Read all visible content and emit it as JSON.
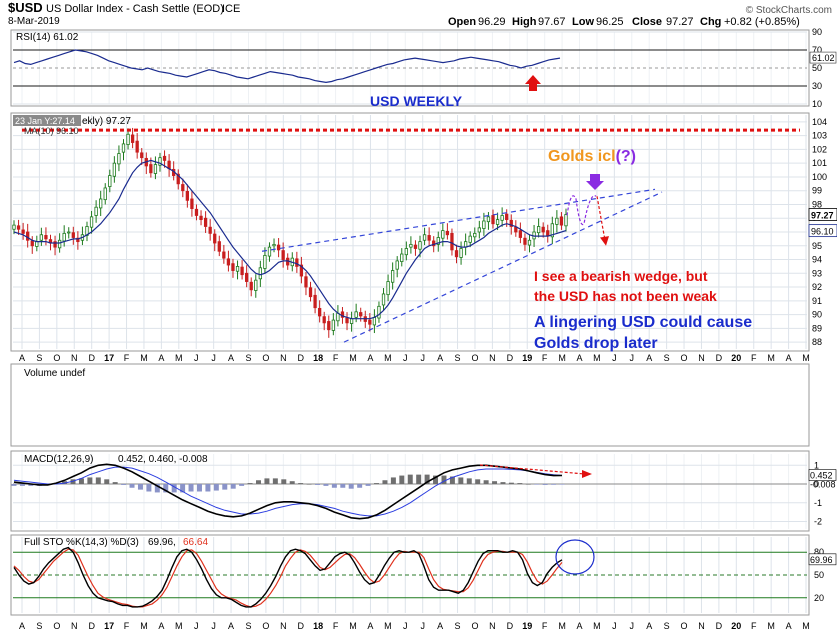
{
  "header": {
    "symbol": "$USD",
    "name": "US Dollar Index - Cash Settle (EOD)",
    "exchange": "ICE",
    "date": "8-Mar-2019",
    "open_label": "Open",
    "open": "96.29",
    "high_label": "High",
    "high": "97.67",
    "low_label": "Low",
    "low": "96.25",
    "close_label": "Close",
    "close": "97.27",
    "chg_label": "Chg",
    "chg": "+0.82 (+0.85%)",
    "watermark": "© StockCharts.com"
  },
  "colors": {
    "bg": "#ffffff",
    "panel_border": "#9a9a9a",
    "grid": "#dde3ea",
    "up": "#1c7a1c",
    "down": "#c81e1e",
    "ma": "#1a2b8f",
    "dashed_blue": "#3446d8",
    "red_line": "#e01010",
    "orange_text": "#f0961e",
    "purple": "#8a2be2",
    "k_line": "#111111",
    "d_line": "#e0311d",
    "macd_hist": "#8a8a9a",
    "macd_signal": "#2c3ee0"
  },
  "annotations": {
    "usd_weekly": "USD WEEKLY",
    "golds_icl": "Golds icl",
    "golds_icl_q": "(?)",
    "bearish1": "I see a bearish wedge, but",
    "bearish2": "the USD has not been weak",
    "lingering1": "A lingering USD could cause",
    "lingering2": "Golds drop later",
    "tooltip": "23 Jan Y:27.14",
    "price_legend_ma": "MA(10) 96.10",
    "price_legend_tail": "ekly) 97.27"
  },
  "chart_data": [
    {
      "type": "line",
      "panel": "rsi",
      "legend": "RSI(14) 61.02",
      "ylim": [
        10,
        90
      ],
      "y_ticks": [
        "90",
        "70",
        "50",
        "30",
        "10"
      ],
      "last_value_label": "61.02",
      "series": [
        {
          "name": "RSI(14)",
          "values": [
            56,
            58,
            55,
            54,
            56,
            58,
            60,
            62,
            64,
            66,
            68,
            70,
            69,
            68,
            66,
            64,
            61,
            58,
            56,
            54,
            52,
            50,
            49,
            48,
            50,
            48,
            46,
            45,
            44,
            42,
            41,
            40,
            42,
            44,
            46,
            48,
            47,
            45,
            44,
            42,
            40,
            39,
            38,
            40,
            42,
            44,
            46,
            45,
            44,
            43,
            42,
            40,
            39,
            38,
            36,
            35,
            34,
            35,
            37,
            38,
            40,
            42,
            44,
            46,
            48,
            50,
            52,
            54,
            55,
            57,
            59,
            60,
            61,
            60,
            59,
            58,
            57,
            56,
            57,
            58,
            60,
            61,
            62,
            61,
            60,
            59,
            58,
            57,
            55,
            53,
            52,
            50,
            52,
            53,
            55,
            57,
            59,
            60,
            61
          ]
        }
      ]
    },
    {
      "type": "candlestick",
      "panel": "price",
      "title": "$USD US Dollar Index - Cash Settle (EOD) ICE",
      "ylim": [
        87.5,
        104.5
      ],
      "y_ticks": [
        "104",
        "103",
        "102",
        "101",
        "100",
        "99",
        "98",
        "97",
        "96",
        "95",
        "94",
        "93",
        "92",
        "91",
        "90",
        "89",
        "88"
      ],
      "last_close_label": "97.27",
      "ma_label": "96.10",
      "x_tick_labels": [
        "A",
        "S",
        "O",
        "N",
        "D",
        "17",
        "F",
        "M",
        "A",
        "M",
        "J",
        "J",
        "A",
        "S",
        "O",
        "N",
        "D",
        "18",
        "F",
        "M",
        "A",
        "M",
        "J",
        "J",
        "A",
        "S",
        "O",
        "N",
        "D",
        "19",
        "F",
        "M",
        "A",
        "M",
        "J",
        "J",
        "A",
        "S",
        "O",
        "N",
        "D",
        "20",
        "F",
        "M",
        "A",
        "M"
      ],
      "close": [
        96.5,
        96.2,
        95.9,
        95.4,
        95.0,
        95.3,
        95.8,
        95.5,
        95.2,
        94.9,
        95.4,
        95.9,
        96.0,
        95.6,
        95.3,
        95.8,
        96.4,
        97.1,
        97.8,
        98.4,
        99.2,
        100.1,
        101.0,
        101.7,
        102.4,
        103.1,
        102.5,
        101.8,
        101.4,
        100.8,
        100.3,
        100.9,
        101.4,
        101.2,
        100.6,
        100.1,
        99.5,
        99.0,
        98.3,
        97.7,
        97.2,
        96.9,
        96.4,
        95.9,
        95.2,
        94.6,
        94.1,
        93.6,
        93.2,
        93.5,
        92.9,
        92.4,
        91.8,
        92.5,
        93.4,
        94.3,
        94.9,
        95.1,
        94.7,
        94.0,
        93.6,
        94.1,
        93.5,
        92.8,
        92.0,
        91.3,
        90.5,
        89.9,
        89.4,
        88.9,
        89.6,
        90.1,
        89.8,
        89.4,
        89.7,
        90.2,
        89.9,
        89.5,
        89.3,
        89.8,
        90.6,
        91.5,
        92.4,
        93.2,
        93.9,
        94.4,
        94.8,
        95.1,
        94.8,
        95.3,
        95.8,
        95.4,
        95.0,
        95.6,
        96.1,
        95.8,
        94.7,
        94.2,
        94.8,
        95.3,
        95.7,
        95.9,
        96.3,
        96.8,
        97.1,
        96.6,
        96.9,
        97.2,
        96.9,
        96.4,
        96.0,
        95.6,
        95.1,
        95.4,
        96.0,
        96.4,
        96.0,
        95.7,
        96.6,
        97.0,
        96.5,
        97.27
      ],
      "ma10": [
        96.0,
        95.9,
        95.8,
        95.6,
        95.4,
        95.3,
        95.3,
        95.3,
        95.2,
        95.2,
        95.2,
        95.3,
        95.4,
        95.5,
        95.5,
        95.6,
        95.8,
        96.0,
        96.3,
        96.6,
        97.0,
        97.4,
        97.9,
        98.4,
        99.1,
        99.7,
        100.3,
        100.7,
        101.0,
        101.1,
        101.2,
        101.1,
        101.0,
        100.8,
        100.6,
        100.4,
        100.1,
        99.8,
        99.4,
        99.0,
        98.6,
        98.2,
        97.8,
        97.4,
        96.9,
        96.4,
        95.9,
        95.4,
        94.9,
        94.5,
        94.1,
        93.7,
        93.3,
        93.0,
        92.9,
        93.0,
        93.2,
        93.5,
        93.8,
        93.9,
        93.9,
        93.8,
        93.7,
        93.5,
        93.2,
        92.8,
        92.3,
        91.8,
        91.3,
        90.8,
        90.4,
        90.1,
        89.9,
        89.8,
        89.7,
        89.7,
        89.7,
        89.7,
        89.7,
        89.8,
        90.0,
        90.3,
        90.7,
        91.2,
        91.8,
        92.4,
        93.0,
        93.5,
        94.0,
        94.4,
        94.8,
        95.0,
        95.1,
        95.2,
        95.3,
        95.3,
        95.2,
        95.0,
        94.9,
        94.9,
        95.0,
        95.2,
        95.4,
        95.6,
        95.9,
        96.1,
        96.3,
        96.5,
        96.6,
        96.5,
        96.4,
        96.2,
        96.0,
        95.8,
        95.7,
        95.7,
        95.7,
        95.7,
        95.8,
        95.9,
        96.0,
        96.1
      ]
    },
    {
      "type": "bar",
      "panel": "volume",
      "legend": "Volume undef",
      "values": []
    },
    {
      "type": "line",
      "panel": "macd",
      "legend_prefix": "MACD(12,26,9)",
      "legend_values": "0.452, 0.460, -0.008",
      "legend": "MACD(12,26,9) 0.452, 0.460, -0.008",
      "ylim": [
        -2.4,
        1.6
      ],
      "y_ticks": [
        "1",
        "0",
        "-1",
        "-2"
      ],
      "last_labels": [
        "0.452",
        "-0.008"
      ],
      "series": [
        {
          "name": "MACD",
          "values": [
            0.1,
            0.05,
            0.0,
            -0.05,
            -0.05,
            0.05,
            0.2,
            0.4,
            0.6,
            0.85,
            1.0,
            1.05,
            1.0,
            0.85,
            0.65,
            0.4,
            0.15,
            -0.1,
            -0.35,
            -0.6,
            -0.85,
            -1.05,
            -1.25,
            -1.45,
            -1.6,
            -1.7,
            -1.75,
            -1.7,
            -1.55,
            -1.35,
            -1.15,
            -1.0,
            -0.95,
            -0.95,
            -1.0,
            -1.05,
            -1.15,
            -1.3,
            -1.5,
            -1.65,
            -1.8,
            -1.85,
            -1.8,
            -1.65,
            -1.4,
            -1.1,
            -0.8,
            -0.5,
            -0.2,
            0.1,
            0.35,
            0.6,
            0.75,
            0.85,
            0.95,
            1.0,
            1.0,
            0.95,
            0.9,
            0.85,
            0.8,
            0.7,
            0.6,
            0.5,
            0.45,
            0.452
          ]
        },
        {
          "name": "Signal",
          "values": [
            0.2,
            0.15,
            0.1,
            0.05,
            0.0,
            0.0,
            0.05,
            0.15,
            0.3,
            0.5,
            0.65,
            0.8,
            0.9,
            0.9,
            0.85,
            0.7,
            0.55,
            0.35,
            0.1,
            -0.15,
            -0.4,
            -0.65,
            -0.85,
            -1.05,
            -1.25,
            -1.4,
            -1.5,
            -1.6,
            -1.6,
            -1.55,
            -1.45,
            -1.3,
            -1.2,
            -1.1,
            -1.05,
            -1.05,
            -1.1,
            -1.2,
            -1.3,
            -1.45,
            -1.55,
            -1.65,
            -1.7,
            -1.7,
            -1.6,
            -1.45,
            -1.25,
            -1.0,
            -0.7,
            -0.4,
            -0.1,
            0.15,
            0.35,
            0.5,
            0.65,
            0.75,
            0.8,
            0.8,
            0.8,
            0.78,
            0.75,
            0.7,
            0.62,
            0.55,
            0.49,
            0.46
          ]
        },
        {
          "name": "Histogram",
          "values": [
            -0.1,
            -0.1,
            -0.1,
            -0.1,
            -0.05,
            0.05,
            0.15,
            0.25,
            0.3,
            0.35,
            0.35,
            0.25,
            0.1,
            -0.05,
            -0.2,
            -0.3,
            -0.4,
            -0.45,
            -0.45,
            -0.45,
            -0.45,
            -0.4,
            -0.4,
            -0.4,
            -0.35,
            -0.3,
            -0.25,
            -0.1,
            0.05,
            0.2,
            0.3,
            0.3,
            0.25,
            0.15,
            0.05,
            0.0,
            -0.05,
            -0.1,
            -0.2,
            -0.2,
            -0.25,
            -0.2,
            -0.1,
            0.05,
            0.2,
            0.35,
            0.45,
            0.5,
            0.5,
            0.5,
            0.45,
            0.45,
            0.4,
            0.35,
            0.3,
            0.25,
            0.2,
            0.15,
            0.1,
            0.07,
            0.05,
            0.0,
            -0.02,
            -0.05,
            -0.04,
            -0.008
          ]
        }
      ]
    },
    {
      "type": "line",
      "panel": "sto",
      "legend_prefix": "Full STO %K(14,3) %D(3)",
      "legend_values": "69.96,",
      "legend_d": "66.64",
      "legend": "Full STO %K(14,3) %D(3) 69.96, 66.64",
      "ylim": [
        0,
        100
      ],
      "y_ticks": [
        "80",
        "50",
        "20"
      ],
      "last_value_label": "69.96",
      "x_tick_labels": [
        "A",
        "S",
        "O",
        "N",
        "D",
        "17",
        "F",
        "M",
        "A",
        "M",
        "J",
        "J",
        "A",
        "S",
        "O",
        "N",
        "D",
        "18",
        "F",
        "M",
        "A",
        "M",
        "J",
        "J",
        "A",
        "S",
        "O",
        "N",
        "D",
        "19",
        "F",
        "M",
        "A",
        "M",
        "J",
        "J",
        "A",
        "S",
        "O",
        "N",
        "D",
        "20",
        "F",
        "M",
        "A",
        "M"
      ],
      "series": [
        {
          "name": "%K",
          "values": [
            60,
            50,
            42,
            38,
            40,
            48,
            58,
            66,
            72,
            78,
            84,
            86,
            80,
            66,
            50,
            36,
            26,
            20,
            18,
            16,
            15,
            12,
            10,
            10,
            8,
            8,
            9,
            12,
            16,
            22,
            30,
            44,
            60,
            74,
            82,
            84,
            80,
            70,
            58,
            44,
            32,
            24,
            20,
            20,
            18,
            14,
            10,
            8,
            8,
            12,
            18,
            26,
            36,
            48,
            62,
            74,
            82,
            84,
            82,
            78,
            70,
            62,
            56,
            58,
            66,
            74,
            78,
            80,
            76,
            66,
            54,
            44,
            38,
            40,
            50,
            62,
            72,
            80,
            82,
            80,
            80,
            82,
            78,
            62,
            44,
            34,
            30,
            30,
            30,
            28,
            26,
            30,
            40,
            54,
            68,
            78,
            82,
            82,
            82,
            80,
            80,
            82,
            80,
            70,
            52,
            40,
            36,
            40,
            52,
            60,
            66,
            69.96
          ]
        },
        {
          "name": "%D",
          "values": [
            62,
            56,
            48,
            42,
            40,
            44,
            52,
            60,
            68,
            74,
            80,
            84,
            83,
            76,
            62,
            48,
            36,
            26,
            21,
            18,
            16,
            14,
            12,
            11,
            9,
            8,
            8,
            10,
            12,
            17,
            24,
            34,
            48,
            62,
            74,
            82,
            83,
            78,
            68,
            56,
            44,
            32,
            25,
            21,
            19,
            17,
            13,
            10,
            8,
            9,
            12,
            18,
            26,
            36,
            48,
            62,
            72,
            80,
            83,
            81,
            76,
            68,
            60,
            57,
            60,
            66,
            72,
            77,
            78,
            73,
            64,
            54,
            45,
            40,
            42,
            50,
            60,
            70,
            78,
            81,
            80,
            80,
            80,
            73,
            58,
            44,
            35,
            31,
            30,
            29,
            28,
            28,
            33,
            43,
            56,
            69,
            77,
            80,
            81,
            81,
            80,
            80,
            80,
            77,
            67,
            53,
            42,
            38,
            42,
            50,
            59,
            66.64
          ]
        }
      ]
    }
  ]
}
